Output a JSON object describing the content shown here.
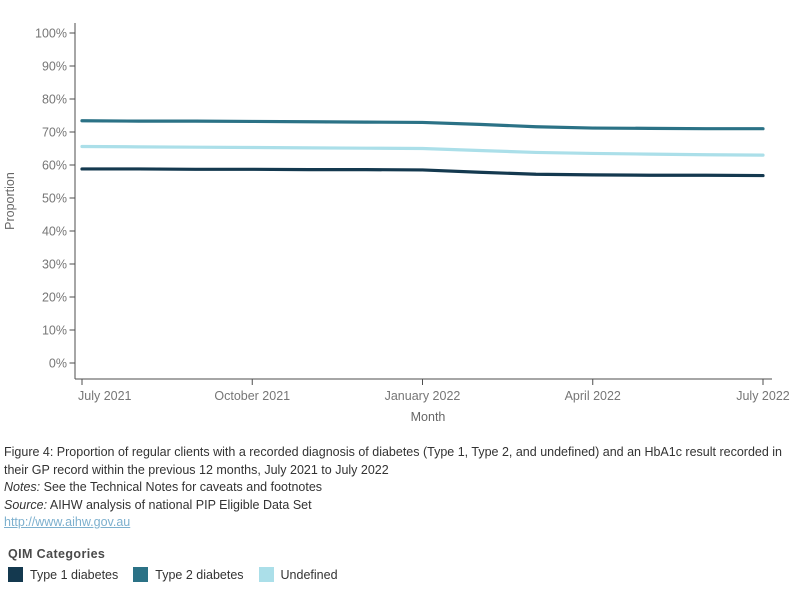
{
  "figure": {
    "caption": "Figure 4: Proportion of regular clients with a recorded diagnosis of diabetes (Type 1, Type 2, and undefined) and an HbA1c result recorded in their GP record within the previous 12 months, July 2021 to July 2022",
    "notes_label": "Notes:",
    "notes_text": " See the Technical Notes for caveats and footnotes",
    "source_label": "Source:",
    "source_text": " AIHW analysis of national PIP Eligible Data Set",
    "link": "http://www.aihw.gov.au",
    "link_color": "#7db0ce"
  },
  "legend": {
    "title": "QIM Categories",
    "items": [
      {
        "label": "Type 1 diabetes",
        "color": "#14394f"
      },
      {
        "label": "Type 2 diabetes",
        "color": "#2b7286"
      },
      {
        "label": "Undefined",
        "color": "#abdfe9"
      }
    ]
  },
  "chart_data": {
    "type": "line",
    "title": "",
    "xlabel": "Month",
    "ylabel": "Proportion",
    "ylim": [
      0,
      100
    ],
    "y_tick_step": 10,
    "y_tick_suffix": "%",
    "grid": false,
    "legend_position": "bottom",
    "x": [
      "July 2021",
      "August 2021",
      "September 2021",
      "October 2021",
      "November 2021",
      "December 2021",
      "January 2022",
      "February 2022",
      "March 2022",
      "April 2022",
      "May 2022",
      "June 2022",
      "July 2022"
    ],
    "x_tick_indices": [
      0,
      3,
      6,
      9,
      12
    ],
    "x_tick_labels": [
      "July 2021",
      "October 2021",
      "January 2022",
      "April 2022",
      "July 2022"
    ],
    "series": [
      {
        "name": "Type 1 diabetes",
        "color": "#14394f",
        "values": [
          58.8,
          58.8,
          58.7,
          58.7,
          58.6,
          58.6,
          58.5,
          57.8,
          57.2,
          57.0,
          56.9,
          56.9,
          56.8
        ]
      },
      {
        "name": "Type 2 diabetes",
        "color": "#2b7286",
        "values": [
          73.4,
          73.3,
          73.3,
          73.2,
          73.1,
          73.0,
          72.9,
          72.3,
          71.6,
          71.2,
          71.1,
          71.0,
          71.0
        ]
      },
      {
        "name": "Undefined",
        "color": "#abdfe9",
        "values": [
          65.6,
          65.5,
          65.4,
          65.3,
          65.2,
          65.1,
          65.0,
          64.4,
          63.8,
          63.5,
          63.3,
          63.1,
          63.0
        ]
      }
    ]
  }
}
